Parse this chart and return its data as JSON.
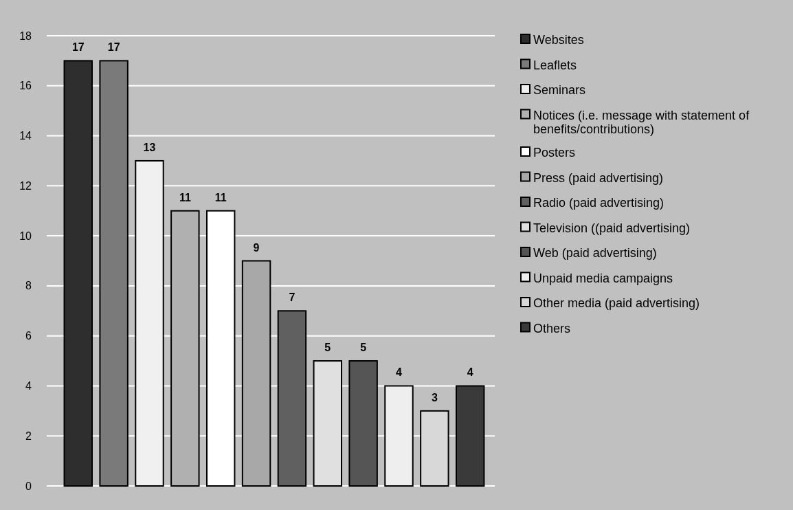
{
  "chart_data": {
    "type": "bar",
    "stacked": true,
    "categories": [
      null,
      null,
      null,
      null,
      null,
      null,
      null,
      null,
      null,
      null,
      null,
      null
    ],
    "series": [
      {
        "name": "Websites",
        "color": "#2e2e2e",
        "values": [
          17,
          null,
          null,
          null,
          null,
          null,
          null,
          null,
          null,
          null,
          null,
          null
        ]
      },
      {
        "name": "Leaflets",
        "color": "#7a7a7a",
        "values": [
          null,
          17,
          null,
          null,
          null,
          null,
          null,
          null,
          null,
          null,
          null,
          null
        ]
      },
      {
        "name": "Seminars",
        "color": "#f0f0f0",
        "values": [
          null,
          null,
          13,
          null,
          null,
          null,
          null,
          null,
          null,
          null,
          null,
          null
        ]
      },
      {
        "name": "Notices (i.e. message with statement of benefits/contributions)",
        "color": "#b0b0b0",
        "values": [
          null,
          null,
          null,
          11,
          null,
          null,
          null,
          null,
          null,
          null,
          null,
          null
        ]
      },
      {
        "name": "Posters",
        "color": "#ffffff",
        "values": [
          null,
          null,
          null,
          null,
          11,
          null,
          null,
          null,
          null,
          null,
          null,
          null
        ]
      },
      {
        "name": "Press (paid advertising)",
        "color": "#a8a8a8",
        "values": [
          null,
          null,
          null,
          null,
          null,
          9,
          null,
          null,
          null,
          null,
          null,
          null
        ]
      },
      {
        "name": "Radio (paid advertising)",
        "color": "#606060",
        "values": [
          null,
          null,
          null,
          null,
          null,
          null,
          7,
          null,
          null,
          null,
          null,
          null
        ]
      },
      {
        "name": "Television ((paid advertising)",
        "color": "#e0e0e0",
        "values": [
          null,
          null,
          null,
          null,
          null,
          null,
          null,
          5,
          null,
          null,
          null,
          null
        ]
      },
      {
        "name": "Web (paid advertising)",
        "color": "#555555",
        "values": [
          null,
          null,
          null,
          null,
          null,
          null,
          null,
          null,
          5,
          null,
          null,
          null
        ]
      },
      {
        "name": "Unpaid media campaigns",
        "color": "#eeeeee",
        "values": [
          null,
          null,
          null,
          null,
          null,
          null,
          null,
          null,
          null,
          4,
          null,
          null
        ]
      },
      {
        "name": "Other media (paid advertising)",
        "color": "#d8d8d8",
        "values": [
          null,
          null,
          null,
          null,
          null,
          null,
          null,
          null,
          null,
          null,
          3,
          null
        ]
      },
      {
        "name": "Others",
        "color": "#3a3a3a",
        "values": [
          null,
          null,
          null,
          null,
          null,
          null,
          null,
          null,
          null,
          null,
          null,
          4
        ]
      }
    ],
    "ylim": [
      0,
      18
    ],
    "yticks": [
      0,
      2,
      4,
      6,
      8,
      10,
      12,
      14,
      16,
      18
    ],
    "grid": "y",
    "legend": "right",
    "tick_labels": "y",
    "data_labels": true
  }
}
